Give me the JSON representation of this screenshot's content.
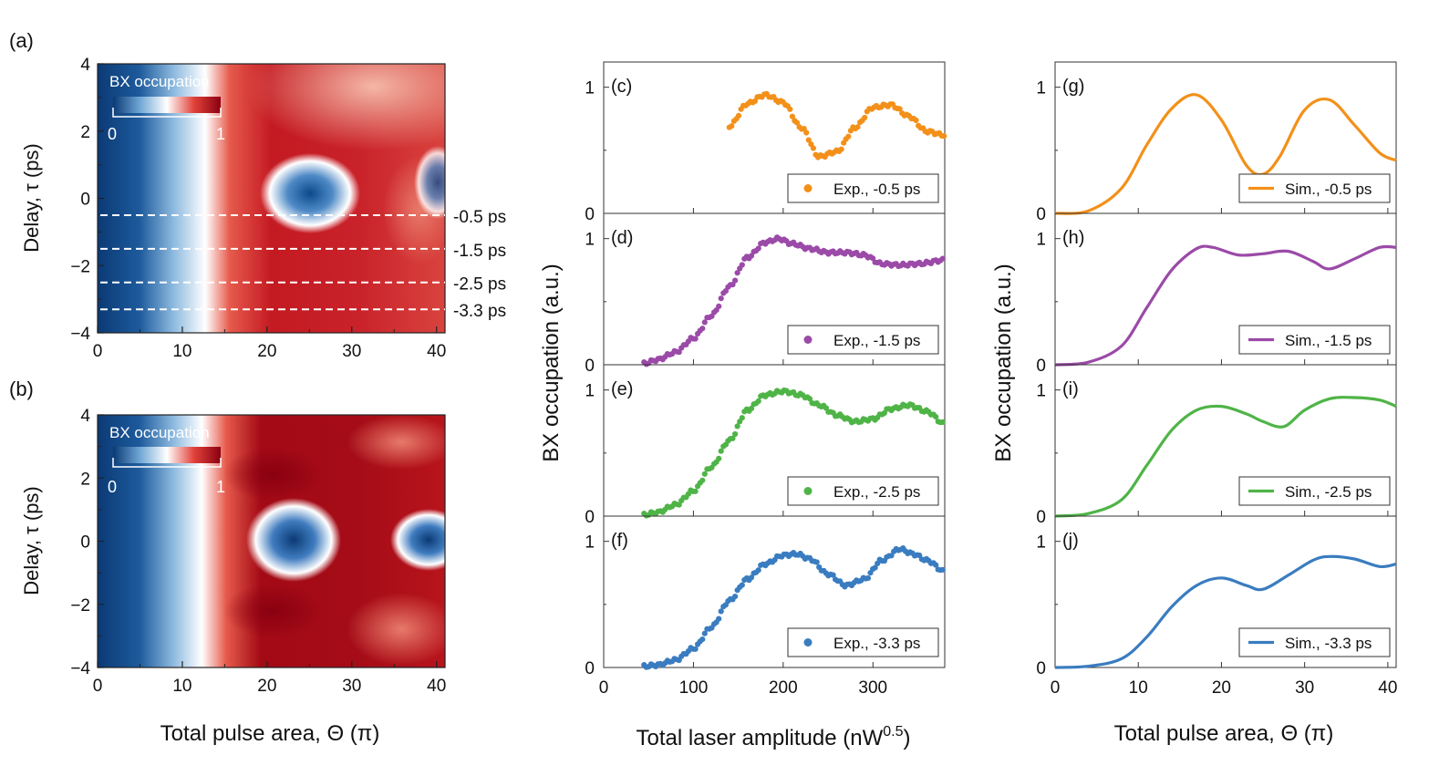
{
  "figure_type": "multi-panel scientific figure",
  "colors": {
    "orange": "#f39019",
    "purple": "#9b4aa8",
    "green": "#4fb447",
    "blue": "#3a7cc0",
    "map_low": "#0b3a75",
    "map_mid": "#ffffff",
    "map_high": "#8a0011",
    "dashed_lines": "#ffffff"
  },
  "maps": {
    "xlabel": "Total pulse area, Θ (π)",
    "ylabel": "Delay, τ (ps)",
    "colorbar_title": "BX occupation",
    "colorbar_min": "0",
    "colorbar_max": "1",
    "x_ticks": [
      "0",
      "10",
      "20",
      "30",
      "40"
    ],
    "y_ticks": [
      "4",
      "2",
      "0",
      "−2",
      "−4"
    ],
    "line_labels": [
      "-0.5 ps",
      "-1.5 ps",
      "-2.5 ps",
      "-3.3 ps"
    ],
    "panel_a": "(a)",
    "panel_b": "(b)"
  },
  "exp": {
    "ylabel": "BX occupation (a.u.)",
    "xlabel_main": "Total laser amplitude (nW",
    "xlabel_sup": "0.5",
    "xlabel_end": ")",
    "x_ticks": [
      "0",
      "100",
      "200",
      "300"
    ],
    "y_ticks": [
      "0",
      "1"
    ],
    "panels": [
      "(c)",
      "(d)",
      "(e)",
      "(f)"
    ],
    "legends": [
      "Exp., -0.5 ps",
      "Exp., -1.5 ps",
      "Exp., -2.5 ps",
      "Exp., -3.3 ps"
    ]
  },
  "sim": {
    "ylabel": "BX occupation (a.u.)",
    "xlabel": "Total pulse area, Θ (π)",
    "x_ticks": [
      "0",
      "10",
      "20",
      "30",
      "40"
    ],
    "y_ticks": [
      "0",
      "1"
    ],
    "panels": [
      "(g)",
      "(h)",
      "(i)",
      "(j)"
    ],
    "legends": [
      "Sim., -0.5 ps",
      "Sim., -1.5 ps",
      "Sim., -2.5 ps",
      "Sim., -3.3 ps"
    ]
  },
  "chart_data": [
    {
      "type": "heatmap",
      "panel": "(a)",
      "xlabel": "Total pulse area, Θ (π)",
      "ylabel": "Delay, τ (ps)",
      "xlim": [
        0,
        41
      ],
      "ylim": [
        -4,
        4
      ],
      "z_label": "BX occupation",
      "zlim": [
        0,
        1
      ],
      "dashed_lines_at_delay_ps": [
        -0.5,
        -1.5,
        -2.5,
        -3.3
      ],
      "features": [
        {
          "x": 25,
          "y": 0,
          "z": 0.1
        },
        {
          "x": 40,
          "y": 0.5,
          "z": 0.45
        }
      ]
    },
    {
      "type": "heatmap",
      "panel": "(b)",
      "xlabel": "Total pulse area, Θ (π)",
      "ylabel": "Delay, τ (ps)",
      "xlim": [
        0,
        41
      ],
      "ylim": [
        -4,
        4
      ],
      "z_label": "BX occupation",
      "zlim": [
        0,
        1
      ],
      "features": [
        {
          "x": 23,
          "y": 0,
          "z": 0.05
        },
        {
          "x": 40,
          "y": 0,
          "z": 0.1
        }
      ]
    },
    {
      "type": "scatter",
      "panel": "(c)",
      "name": "Exp., -0.5 ps",
      "xlim": [
        0,
        380
      ],
      "ylim": [
        0,
        1.2
      ],
      "x": [
        140,
        160,
        180,
        200,
        220,
        240,
        260,
        280,
        300,
        320,
        340,
        360,
        380
      ],
      "y": [
        0.69,
        0.87,
        0.94,
        0.88,
        0.68,
        0.45,
        0.49,
        0.68,
        0.84,
        0.86,
        0.77,
        0.65,
        0.62
      ]
    },
    {
      "type": "scatter",
      "panel": "(d)",
      "name": "Exp., -1.5 ps",
      "xlim": [
        0,
        380
      ],
      "ylim": [
        0,
        1.2
      ],
      "x": [
        45,
        60,
        80,
        100,
        120,
        140,
        160,
        180,
        195,
        210,
        230,
        250,
        270,
        290,
        310,
        330,
        350,
        380
      ],
      "y": [
        0.01,
        0.04,
        0.1,
        0.21,
        0.39,
        0.62,
        0.85,
        0.97,
        1.0,
        0.96,
        0.92,
        0.89,
        0.89,
        0.87,
        0.8,
        0.79,
        0.8,
        0.83
      ]
    },
    {
      "type": "scatter",
      "panel": "(e)",
      "name": "Exp., -2.5 ps",
      "xlim": [
        0,
        380
      ],
      "ylim": [
        0,
        1.2
      ],
      "x": [
        45,
        60,
        80,
        100,
        120,
        140,
        160,
        180,
        200,
        220,
        240,
        260,
        280,
        300,
        320,
        340,
        360,
        380
      ],
      "y": [
        0.01,
        0.03,
        0.09,
        0.2,
        0.39,
        0.6,
        0.84,
        0.96,
        0.99,
        0.96,
        0.88,
        0.8,
        0.75,
        0.77,
        0.85,
        0.88,
        0.83,
        0.73
      ]
    },
    {
      "type": "scatter",
      "panel": "(f)",
      "name": "Exp., -3.3 ps",
      "xlim": [
        0,
        380
      ],
      "ylim": [
        0,
        1.2
      ],
      "x": [
        45,
        60,
        80,
        100,
        120,
        140,
        160,
        180,
        200,
        215,
        230,
        250,
        270,
        290,
        310,
        330,
        345,
        360,
        380
      ],
      "y": [
        0.01,
        0.02,
        0.06,
        0.15,
        0.32,
        0.53,
        0.7,
        0.82,
        0.89,
        0.9,
        0.86,
        0.74,
        0.65,
        0.7,
        0.85,
        0.94,
        0.9,
        0.85,
        0.76
      ]
    },
    {
      "type": "line",
      "panel": "(g)",
      "name": "Sim., -0.5 ps",
      "xlim": [
        0,
        41
      ],
      "ylim": [
        0,
        1.2
      ],
      "x": [
        0,
        4,
        8,
        11,
        14,
        17,
        20,
        23,
        25,
        27,
        30,
        33,
        36,
        39,
        41
      ],
      "y": [
        0.0,
        0.02,
        0.2,
        0.54,
        0.83,
        0.94,
        0.74,
        0.38,
        0.31,
        0.45,
        0.82,
        0.9,
        0.7,
        0.48,
        0.42
      ]
    },
    {
      "type": "line",
      "panel": "(h)",
      "name": "Sim., -1.5 ps",
      "xlim": [
        0,
        41
      ],
      "ylim": [
        0,
        1.2
      ],
      "x": [
        0,
        4,
        8,
        11,
        14,
        17,
        19,
        22,
        25,
        28,
        31,
        33,
        36,
        39,
        41
      ],
      "y": [
        0.0,
        0.02,
        0.15,
        0.45,
        0.75,
        0.92,
        0.93,
        0.87,
        0.88,
        0.9,
        0.82,
        0.76,
        0.84,
        0.93,
        0.93
      ]
    },
    {
      "type": "line",
      "panel": "(i)",
      "name": "Sim., -2.5 ps",
      "xlim": [
        0,
        41
      ],
      "ylim": [
        0,
        1.2
      ],
      "x": [
        0,
        4,
        8,
        11,
        14,
        17,
        20,
        23,
        25,
        27.5,
        30,
        33,
        36,
        39,
        41
      ],
      "y": [
        0.0,
        0.02,
        0.13,
        0.4,
        0.68,
        0.84,
        0.87,
        0.81,
        0.75,
        0.71,
        0.84,
        0.93,
        0.94,
        0.92,
        0.87
      ]
    },
    {
      "type": "line",
      "panel": "(j)",
      "name": "Sim., -3.3 ps",
      "xlim": [
        0,
        41
      ],
      "ylim": [
        0,
        1.2
      ],
      "x": [
        0,
        4,
        8,
        11,
        14,
        17,
        20,
        23,
        25,
        28,
        31,
        33,
        36,
        39,
        41
      ],
      "y": [
        0.0,
        0.01,
        0.07,
        0.24,
        0.48,
        0.65,
        0.71,
        0.65,
        0.62,
        0.73,
        0.85,
        0.88,
        0.86,
        0.8,
        0.82
      ]
    }
  ]
}
